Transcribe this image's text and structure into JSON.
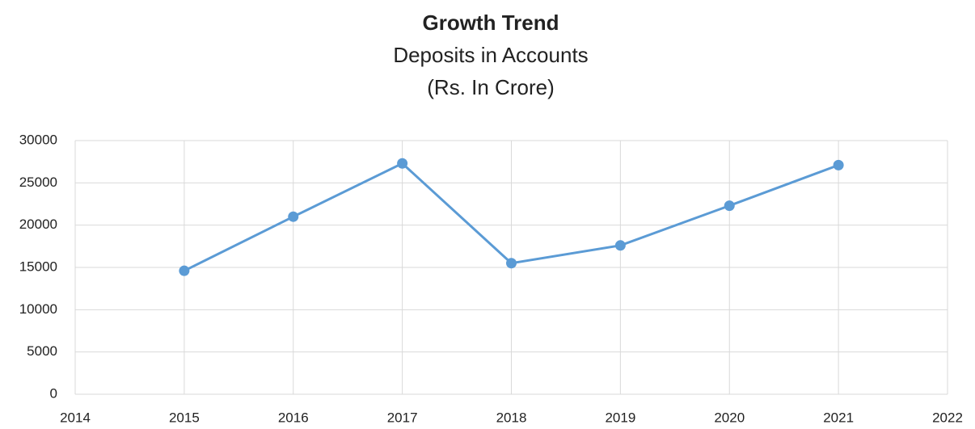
{
  "chart_data": {
    "type": "line",
    "title": "Growth Trend",
    "subtitle": [
      "Deposits in Accounts",
      "(Rs. In Crore)"
    ],
    "x": [
      2015,
      2016,
      2017,
      2018,
      2019,
      2020,
      2021
    ],
    "values": [
      14600,
      21000,
      27300,
      15500,
      17600,
      22300,
      27100
    ],
    "color": "#5b9bd5",
    "xlim": [
      2014,
      2022
    ],
    "xticks": [
      2014,
      2015,
      2016,
      2017,
      2018,
      2019,
      2020,
      2021,
      2022
    ],
    "ylim": [
      0,
      30000
    ],
    "yticks": [
      0,
      5000,
      10000,
      15000,
      20000,
      25000,
      30000
    ],
    "grid": true
  }
}
